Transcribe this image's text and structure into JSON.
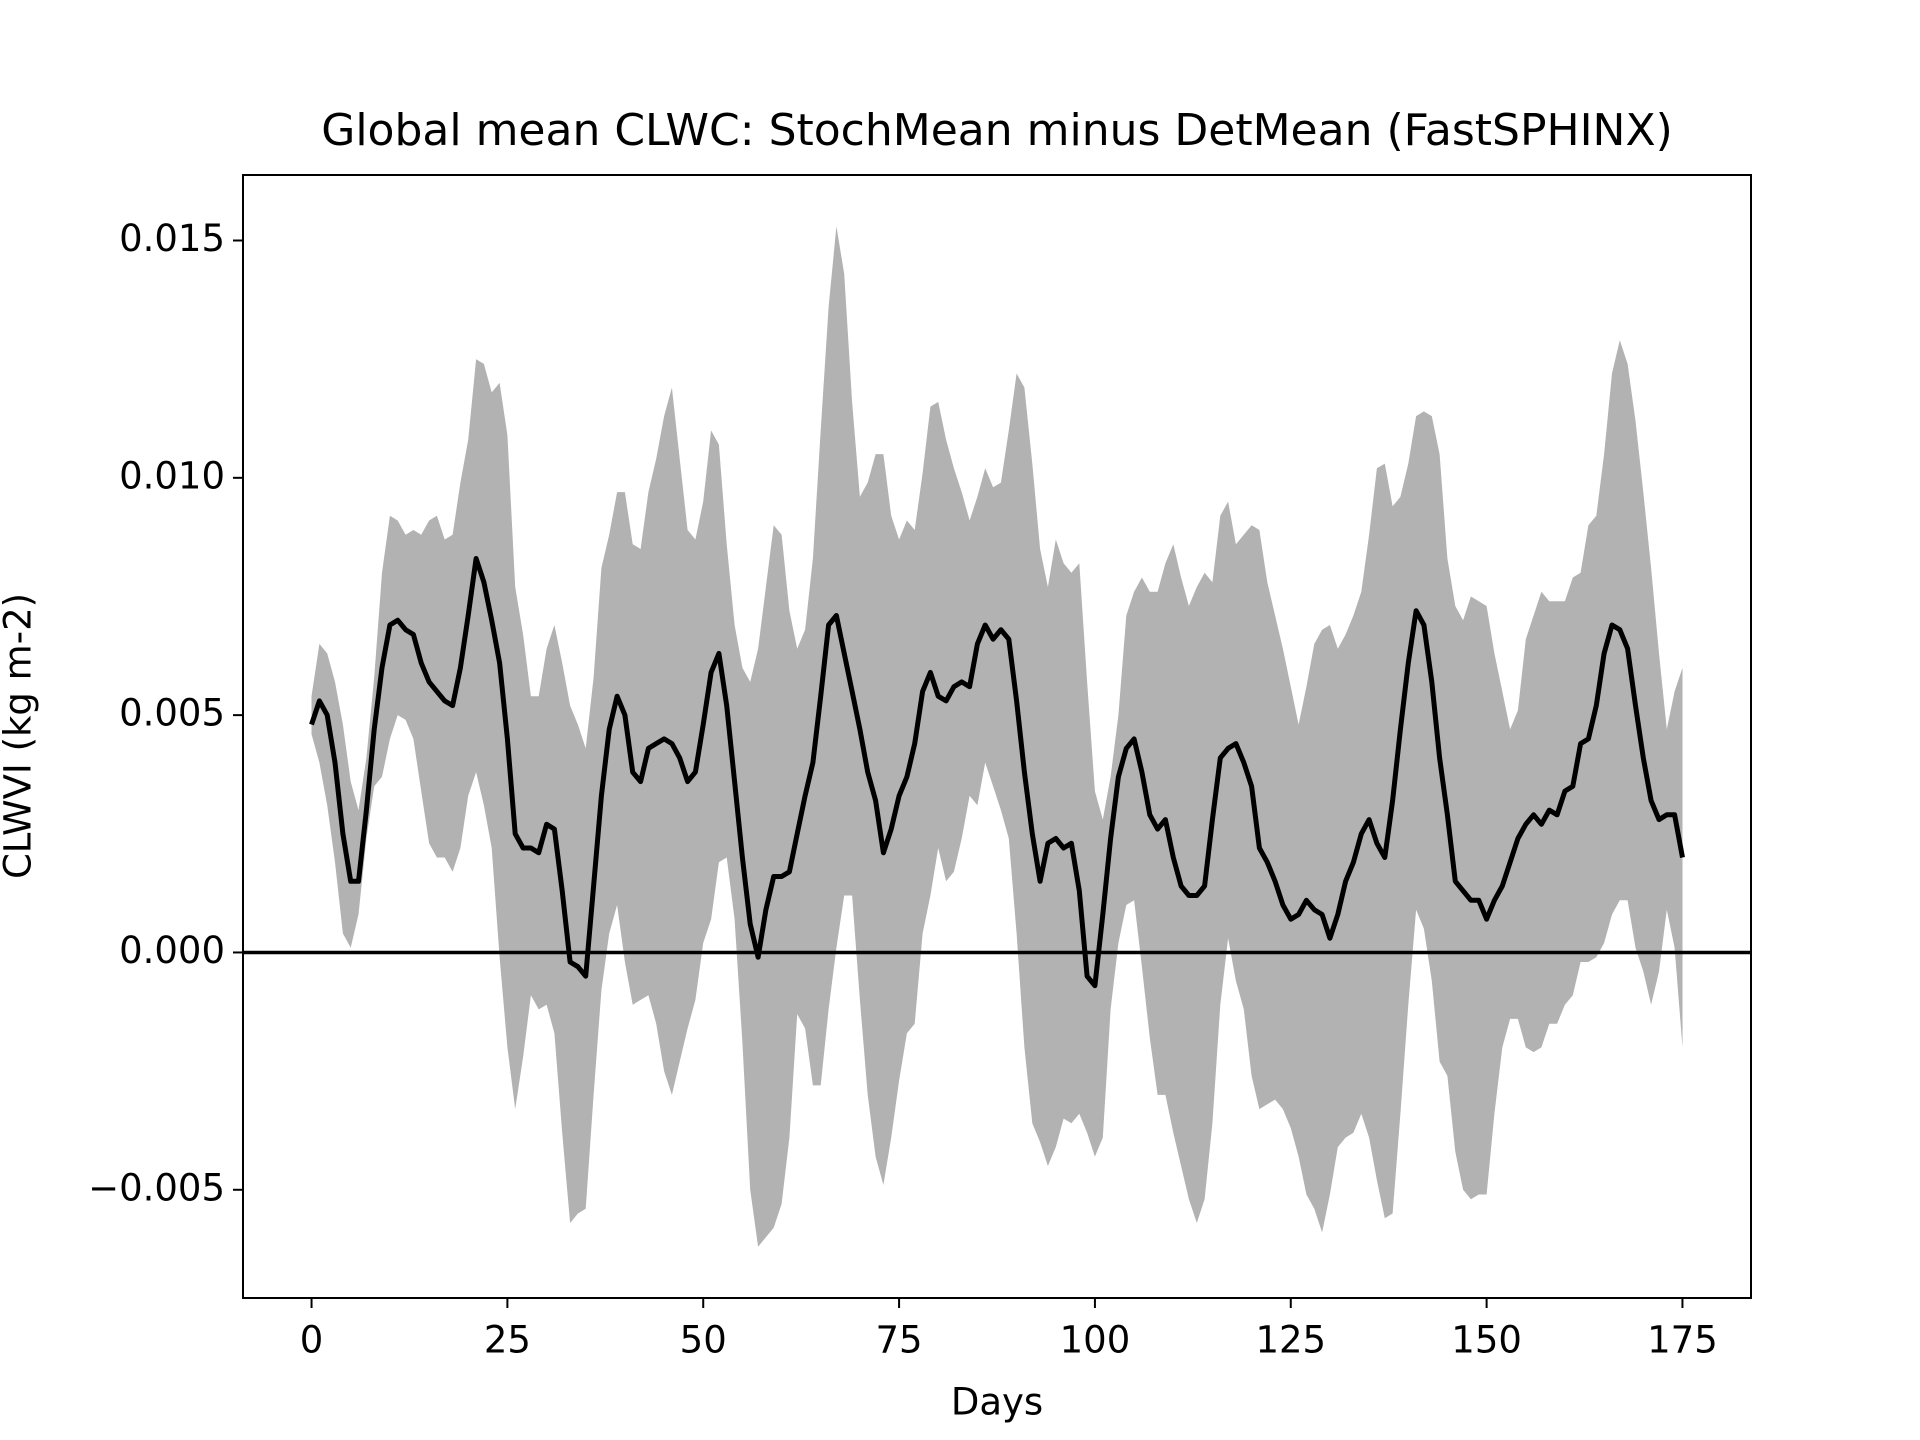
{
  "chart_data": {
    "type": "line",
    "title": "Global mean CLWC: StochMean minus DetMean (FastSPHINX)",
    "x_label": "Days",
    "y_label": "CLWVI (kg m-2)",
    "x": [
      0,
      1,
      2,
      3,
      4,
      5,
      6,
      7,
      8,
      9,
      10,
      11,
      12,
      13,
      14,
      15,
      16,
      17,
      18,
      19,
      20,
      21,
      22,
      23,
      24,
      25,
      26,
      27,
      28,
      29,
      30,
      31,
      32,
      33,
      34,
      35,
      36,
      37,
      38,
      39,
      40,
      41,
      42,
      43,
      44,
      45,
      46,
      47,
      48,
      49,
      50,
      51,
      52,
      53,
      54,
      55,
      56,
      57,
      58,
      59,
      60,
      61,
      62,
      63,
      64,
      65,
      66,
      67,
      68,
      69,
      70,
      71,
      72,
      73,
      74,
      75,
      76,
      77,
      78,
      79,
      80,
      81,
      82,
      83,
      84,
      85,
      86,
      87,
      88,
      89,
      90,
      91,
      92,
      93,
      94,
      95,
      96,
      97,
      98,
      99,
      100,
      101,
      102,
      103,
      104,
      105,
      106,
      107,
      108,
      109,
      110,
      111,
      112,
      113,
      114,
      115,
      116,
      117,
      118,
      119,
      120,
      121,
      122,
      123,
      124,
      125,
      126,
      127,
      128,
      129,
      130,
      131,
      132,
      133,
      134,
      135,
      136,
      137,
      138,
      139,
      140,
      141,
      142,
      143,
      144,
      145,
      146,
      147,
      148,
      149,
      150,
      151,
      152,
      153,
      154,
      155,
      156,
      157,
      158,
      159,
      160,
      161,
      162,
      163,
      164,
      165,
      166,
      167,
      168,
      169,
      170,
      171,
      172,
      173,
      174,
      175
    ],
    "band": {
      "color": "#b2b2b2",
      "upper": [
        0.0054,
        0.0065,
        0.0063,
        0.0057,
        0.0048,
        0.0036,
        0.003,
        0.0041,
        0.0058,
        0.008,
        0.0092,
        0.0091,
        0.0088,
        0.0089,
        0.0088,
        0.0091,
        0.0092,
        0.0087,
        0.0088,
        0.0099,
        0.0108,
        0.0125,
        0.0124,
        0.0118,
        0.012,
        0.0109,
        0.0077,
        0.0067,
        0.0054,
        0.0054,
        0.0064,
        0.0069,
        0.0061,
        0.0052,
        0.0048,
        0.0043,
        0.0058,
        0.0081,
        0.0088,
        0.0097,
        0.0097,
        0.0086,
        0.0085,
        0.0097,
        0.0104,
        0.0113,
        0.0119,
        0.0104,
        0.0089,
        0.0087,
        0.0095,
        0.011,
        0.0107,
        0.0086,
        0.0069,
        0.006,
        0.0057,
        0.0064,
        0.0077,
        0.009,
        0.0088,
        0.0072,
        0.0064,
        0.0068,
        0.0083,
        0.011,
        0.0136,
        0.0153,
        0.0143,
        0.0116,
        0.0096,
        0.0099,
        0.0105,
        0.0105,
        0.0092,
        0.0087,
        0.0091,
        0.0089,
        0.0101,
        0.0115,
        0.0116,
        0.0108,
        0.0102,
        0.0097,
        0.0091,
        0.0096,
        0.0102,
        0.0098,
        0.0099,
        0.011,
        0.0122,
        0.0119,
        0.0103,
        0.0085,
        0.0077,
        0.0087,
        0.0082,
        0.008,
        0.0082,
        0.0057,
        0.0034,
        0.0028,
        0.0037,
        0.005,
        0.0071,
        0.0076,
        0.0079,
        0.0076,
        0.0076,
        0.0082,
        0.0086,
        0.0079,
        0.0073,
        0.0077,
        0.008,
        0.0078,
        0.0092,
        0.0095,
        0.0086,
        0.0088,
        0.009,
        0.0089,
        0.0078,
        0.0071,
        0.0064,
        0.0056,
        0.0048,
        0.0056,
        0.0065,
        0.0068,
        0.0069,
        0.0064,
        0.0067,
        0.0071,
        0.0076,
        0.0088,
        0.0102,
        0.0103,
        0.0094,
        0.0096,
        0.0103,
        0.0113,
        0.0114,
        0.0113,
        0.0105,
        0.0083,
        0.0073,
        0.007,
        0.0075,
        0.0074,
        0.0073,
        0.0063,
        0.0055,
        0.0047,
        0.0051,
        0.0066,
        0.0071,
        0.0076,
        0.0074,
        0.0074,
        0.0074,
        0.0079,
        0.008,
        0.009,
        0.0092,
        0.0105,
        0.0122,
        0.0129,
        0.0124,
        0.0112,
        0.0097,
        0.0081,
        0.0063,
        0.0047,
        0.0055,
        0.006
      ],
      "lower": [
        0.0046,
        0.004,
        0.0031,
        0.0019,
        0.0004,
        0.0001,
        0.0008,
        0.0024,
        0.0035,
        0.0037,
        0.0045,
        0.005,
        0.0049,
        0.0045,
        0.0034,
        0.0023,
        0.002,
        0.002,
        0.0017,
        0.0022,
        0.0033,
        0.0038,
        0.0031,
        0.0022,
        -0.0001,
        -0.002,
        -0.0033,
        -0.0022,
        -0.0009,
        -0.0012,
        -0.0011,
        -0.0017,
        -0.0038,
        -0.0057,
        -0.0055,
        -0.0054,
        -0.003,
        -0.0008,
        0.0004,
        0.001,
        -0.0002,
        -0.0011,
        -0.001,
        -0.0009,
        -0.0015,
        -0.0025,
        -0.003,
        -0.0023,
        -0.0016,
        -0.001,
        0.0002,
        0.0007,
        0.0019,
        0.002,
        0.0007,
        -0.0019,
        -0.005,
        -0.0062,
        -0.006,
        -0.0058,
        -0.0053,
        -0.0039,
        -0.0013,
        -0.0016,
        -0.0028,
        -0.0028,
        -0.0012,
        0.0001,
        0.0012,
        0.0012,
        -0.001,
        -0.003,
        -0.0043,
        -0.0049,
        -0.0039,
        -0.0027,
        -0.0017,
        -0.0015,
        0.0004,
        0.0012,
        0.0022,
        0.0015,
        0.0017,
        0.0024,
        0.0033,
        0.0031,
        0.004,
        0.0035,
        0.003,
        0.0024,
        0.0004,
        -0.002,
        -0.0036,
        -0.004,
        -0.0045,
        -0.0041,
        -0.0035,
        -0.0036,
        -0.0034,
        -0.0038,
        -0.0043,
        -0.0039,
        -0.0012,
        0.0002,
        0.001,
        0.0011,
        -0.0003,
        -0.0018,
        -0.003,
        -0.003,
        -0.0038,
        -0.0045,
        -0.0052,
        -0.0057,
        -0.0052,
        -0.0036,
        -0.0011,
        0.0003,
        -0.0006,
        -0.0012,
        -0.0026,
        -0.0033,
        -0.0032,
        -0.0031,
        -0.0033,
        -0.0037,
        -0.0043,
        -0.0051,
        -0.0054,
        -0.0059,
        -0.0051,
        -0.0041,
        -0.0039,
        -0.0038,
        -0.0034,
        -0.0039,
        -0.0048,
        -0.0056,
        -0.0055,
        -0.0034,
        -0.0011,
        0.0009,
        0.0005,
        -0.0006,
        -0.0023,
        -0.0026,
        -0.0042,
        -0.005,
        -0.0052,
        -0.0051,
        -0.0051,
        -0.0034,
        -0.002,
        -0.0014,
        -0.0014,
        -0.002,
        -0.0021,
        -0.002,
        -0.0015,
        -0.0015,
        -0.0011,
        -0.0009,
        -0.0002,
        -0.0002,
        -0.0001,
        0.0002,
        0.0008,
        0.0011,
        0.0011,
        0.0001,
        -0.0004,
        -0.0011,
        -0.0004,
        0.0009,
        0.0001,
        -0.002
      ]
    },
    "series": [
      {
        "color": "#000000",
        "values": [
          0.0048,
          0.0053,
          0.005,
          0.004,
          0.0025,
          0.0015,
          0.0015,
          0.003,
          0.0047,
          0.006,
          0.0069,
          0.007,
          0.0068,
          0.0067,
          0.0061,
          0.0057,
          0.0055,
          0.0053,
          0.0052,
          0.006,
          0.0071,
          0.0083,
          0.0078,
          0.007,
          0.0061,
          0.0045,
          0.0025,
          0.0022,
          0.0022,
          0.0021,
          0.0027,
          0.0026,
          0.0013,
          -0.0002,
          -0.0003,
          -0.0005,
          0.0014,
          0.0033,
          0.0047,
          0.0054,
          0.005,
          0.0038,
          0.0036,
          0.0043,
          0.0044,
          0.0045,
          0.0044,
          0.0041,
          0.0036,
          0.0038,
          0.0048,
          0.0059,
          0.0063,
          0.0052,
          0.0036,
          0.002,
          0.0006,
          -0.0001,
          0.0009,
          0.0016,
          0.0016,
          0.0017,
          0.0025,
          0.0033,
          0.004,
          0.0054,
          0.0069,
          0.0071,
          0.0063,
          0.0055,
          0.0047,
          0.0038,
          0.0032,
          0.0021,
          0.0026,
          0.0033,
          0.0037,
          0.0044,
          0.0055,
          0.0059,
          0.0054,
          0.0053,
          0.0056,
          0.0057,
          0.0056,
          0.0065,
          0.0069,
          0.0066,
          0.0068,
          0.0066,
          0.0053,
          0.0038,
          0.0025,
          0.0015,
          0.0023,
          0.0024,
          0.0022,
          0.0023,
          0.0013,
          -0.0005,
          -0.0007,
          0.0008,
          0.0024,
          0.0037,
          0.0043,
          0.0045,
          0.0038,
          0.0029,
          0.0026,
          0.0028,
          0.002,
          0.0014,
          0.0012,
          0.0012,
          0.0014,
          0.0028,
          0.0041,
          0.0043,
          0.0044,
          0.004,
          0.0035,
          0.0022,
          0.0019,
          0.0015,
          0.001,
          0.0007,
          0.0008,
          0.0011,
          0.0009,
          0.0008,
          0.0003,
          0.0008,
          0.0015,
          0.0019,
          0.0025,
          0.0028,
          0.0023,
          0.002,
          0.0032,
          0.0047,
          0.0061,
          0.0072,
          0.0069,
          0.0057,
          0.0041,
          0.0029,
          0.0015,
          0.0013,
          0.0011,
          0.0011,
          0.0007,
          0.0011,
          0.0014,
          0.0019,
          0.0024,
          0.0027,
          0.0029,
          0.0027,
          0.003,
          0.0029,
          0.0034,
          0.0035,
          0.0044,
          0.0045,
          0.0052,
          0.0063,
          0.0069,
          0.0068,
          0.0064,
          0.0052,
          0.0041,
          0.0032,
          0.0028,
          0.0029,
          0.0029,
          0.002
        ]
      }
    ],
    "hline": 0,
    "xlim": [
      -8.75,
      183.75
    ],
    "xticks": [
      0,
      25,
      50,
      75,
      100,
      125,
      150,
      175
    ],
    "ylim": [
      -0.00728,
      0.01638
    ],
    "yticks": [
      {
        "value": -0.005,
        "label": "−0.005"
      },
      {
        "value": 0,
        "label": "0.000"
      },
      {
        "value": 0.005,
        "label": "0.005"
      },
      {
        "value": 0.01,
        "label": "0.010"
      },
      {
        "value": 0.015,
        "label": "0.015"
      }
    ]
  }
}
